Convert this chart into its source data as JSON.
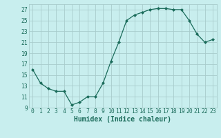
{
  "x": [
    0,
    1,
    2,
    3,
    4,
    5,
    6,
    7,
    8,
    9,
    10,
    11,
    12,
    13,
    14,
    15,
    16,
    17,
    18,
    19,
    20,
    21,
    22,
    23
  ],
  "y": [
    16,
    13.5,
    12.5,
    12,
    12,
    9.5,
    10,
    11,
    11,
    13.5,
    17.5,
    21,
    25,
    26,
    26.5,
    27,
    27.2,
    27.2,
    27,
    27,
    25,
    22.5,
    21,
    21.5
  ],
  "line_color": "#1a6b5a",
  "marker": "D",
  "marker_size": 2.0,
  "bg_color": "#c8eeee",
  "grid_color": "#a8cccc",
  "xlabel": "Humidex (Indice chaleur)",
  "xlabel_color": "#1a6b5a",
  "tick_color": "#1a6b5a",
  "ylim": [
    9,
    28
  ],
  "yticks": [
    9,
    11,
    13,
    15,
    17,
    19,
    21,
    23,
    25,
    27
  ],
  "xticks": [
    0,
    1,
    2,
    3,
    4,
    5,
    6,
    7,
    8,
    9,
    10,
    11,
    12,
    13,
    14,
    15,
    16,
    17,
    18,
    19,
    20,
    21,
    22,
    23
  ],
  "tick_fontsize": 5.8,
  "xlabel_fontsize": 7.0,
  "linewidth": 0.9
}
